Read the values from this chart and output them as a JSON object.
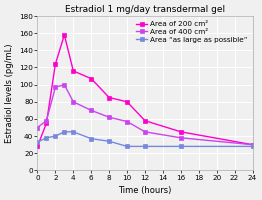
{
  "title": "Estradiol 1 mg/day transdermal gel",
  "xlabel": "Time (hours)",
  "ylabel": "Estradiol levels (pg/mL)",
  "ylim": [
    0,
    180
  ],
  "xlim": [
    0,
    24
  ],
  "xticks": [
    0,
    2,
    4,
    6,
    8,
    10,
    12,
    14,
    16,
    18,
    20,
    22,
    24
  ],
  "yticks": [
    0,
    20,
    40,
    60,
    80,
    100,
    120,
    140,
    160,
    180
  ],
  "series": [
    {
      "label": "Area of 200 cm²",
      "color": "#ff00cc",
      "marker": "s",
      "x": [
        0,
        1,
        2,
        3,
        4,
        6,
        8,
        10,
        12,
        16,
        24
      ],
      "y": [
        28,
        55,
        124,
        158,
        116,
        107,
        85,
        80,
        58,
        45,
        30
      ]
    },
    {
      "label": "Area of 400 cm²",
      "color": "#cc44ee",
      "marker": "s",
      "x": [
        0,
        1,
        2,
        3,
        4,
        6,
        8,
        10,
        12,
        16,
        24
      ],
      "y": [
        50,
        58,
        97,
        100,
        80,
        70,
        62,
        57,
        45,
        38,
        30
      ]
    },
    {
      "label": "Area “as large as possible”",
      "color": "#7788dd",
      "marker": "s",
      "x": [
        0,
        1,
        2,
        3,
        4,
        6,
        8,
        10,
        12,
        16,
        24
      ],
      "y": [
        33,
        38,
        40,
        45,
        45,
        37,
        34,
        28,
        28,
        28,
        28
      ]
    }
  ],
  "bg_color": "#f0f0f0",
  "plot_bg": "#f0f0f0",
  "grid_color": "#ffffff",
  "title_fontsize": 6.5,
  "label_fontsize": 6.0,
  "tick_fontsize": 5.2,
  "legend_fontsize": 5.2,
  "markersize": 2.5,
  "linewidth": 1.0
}
